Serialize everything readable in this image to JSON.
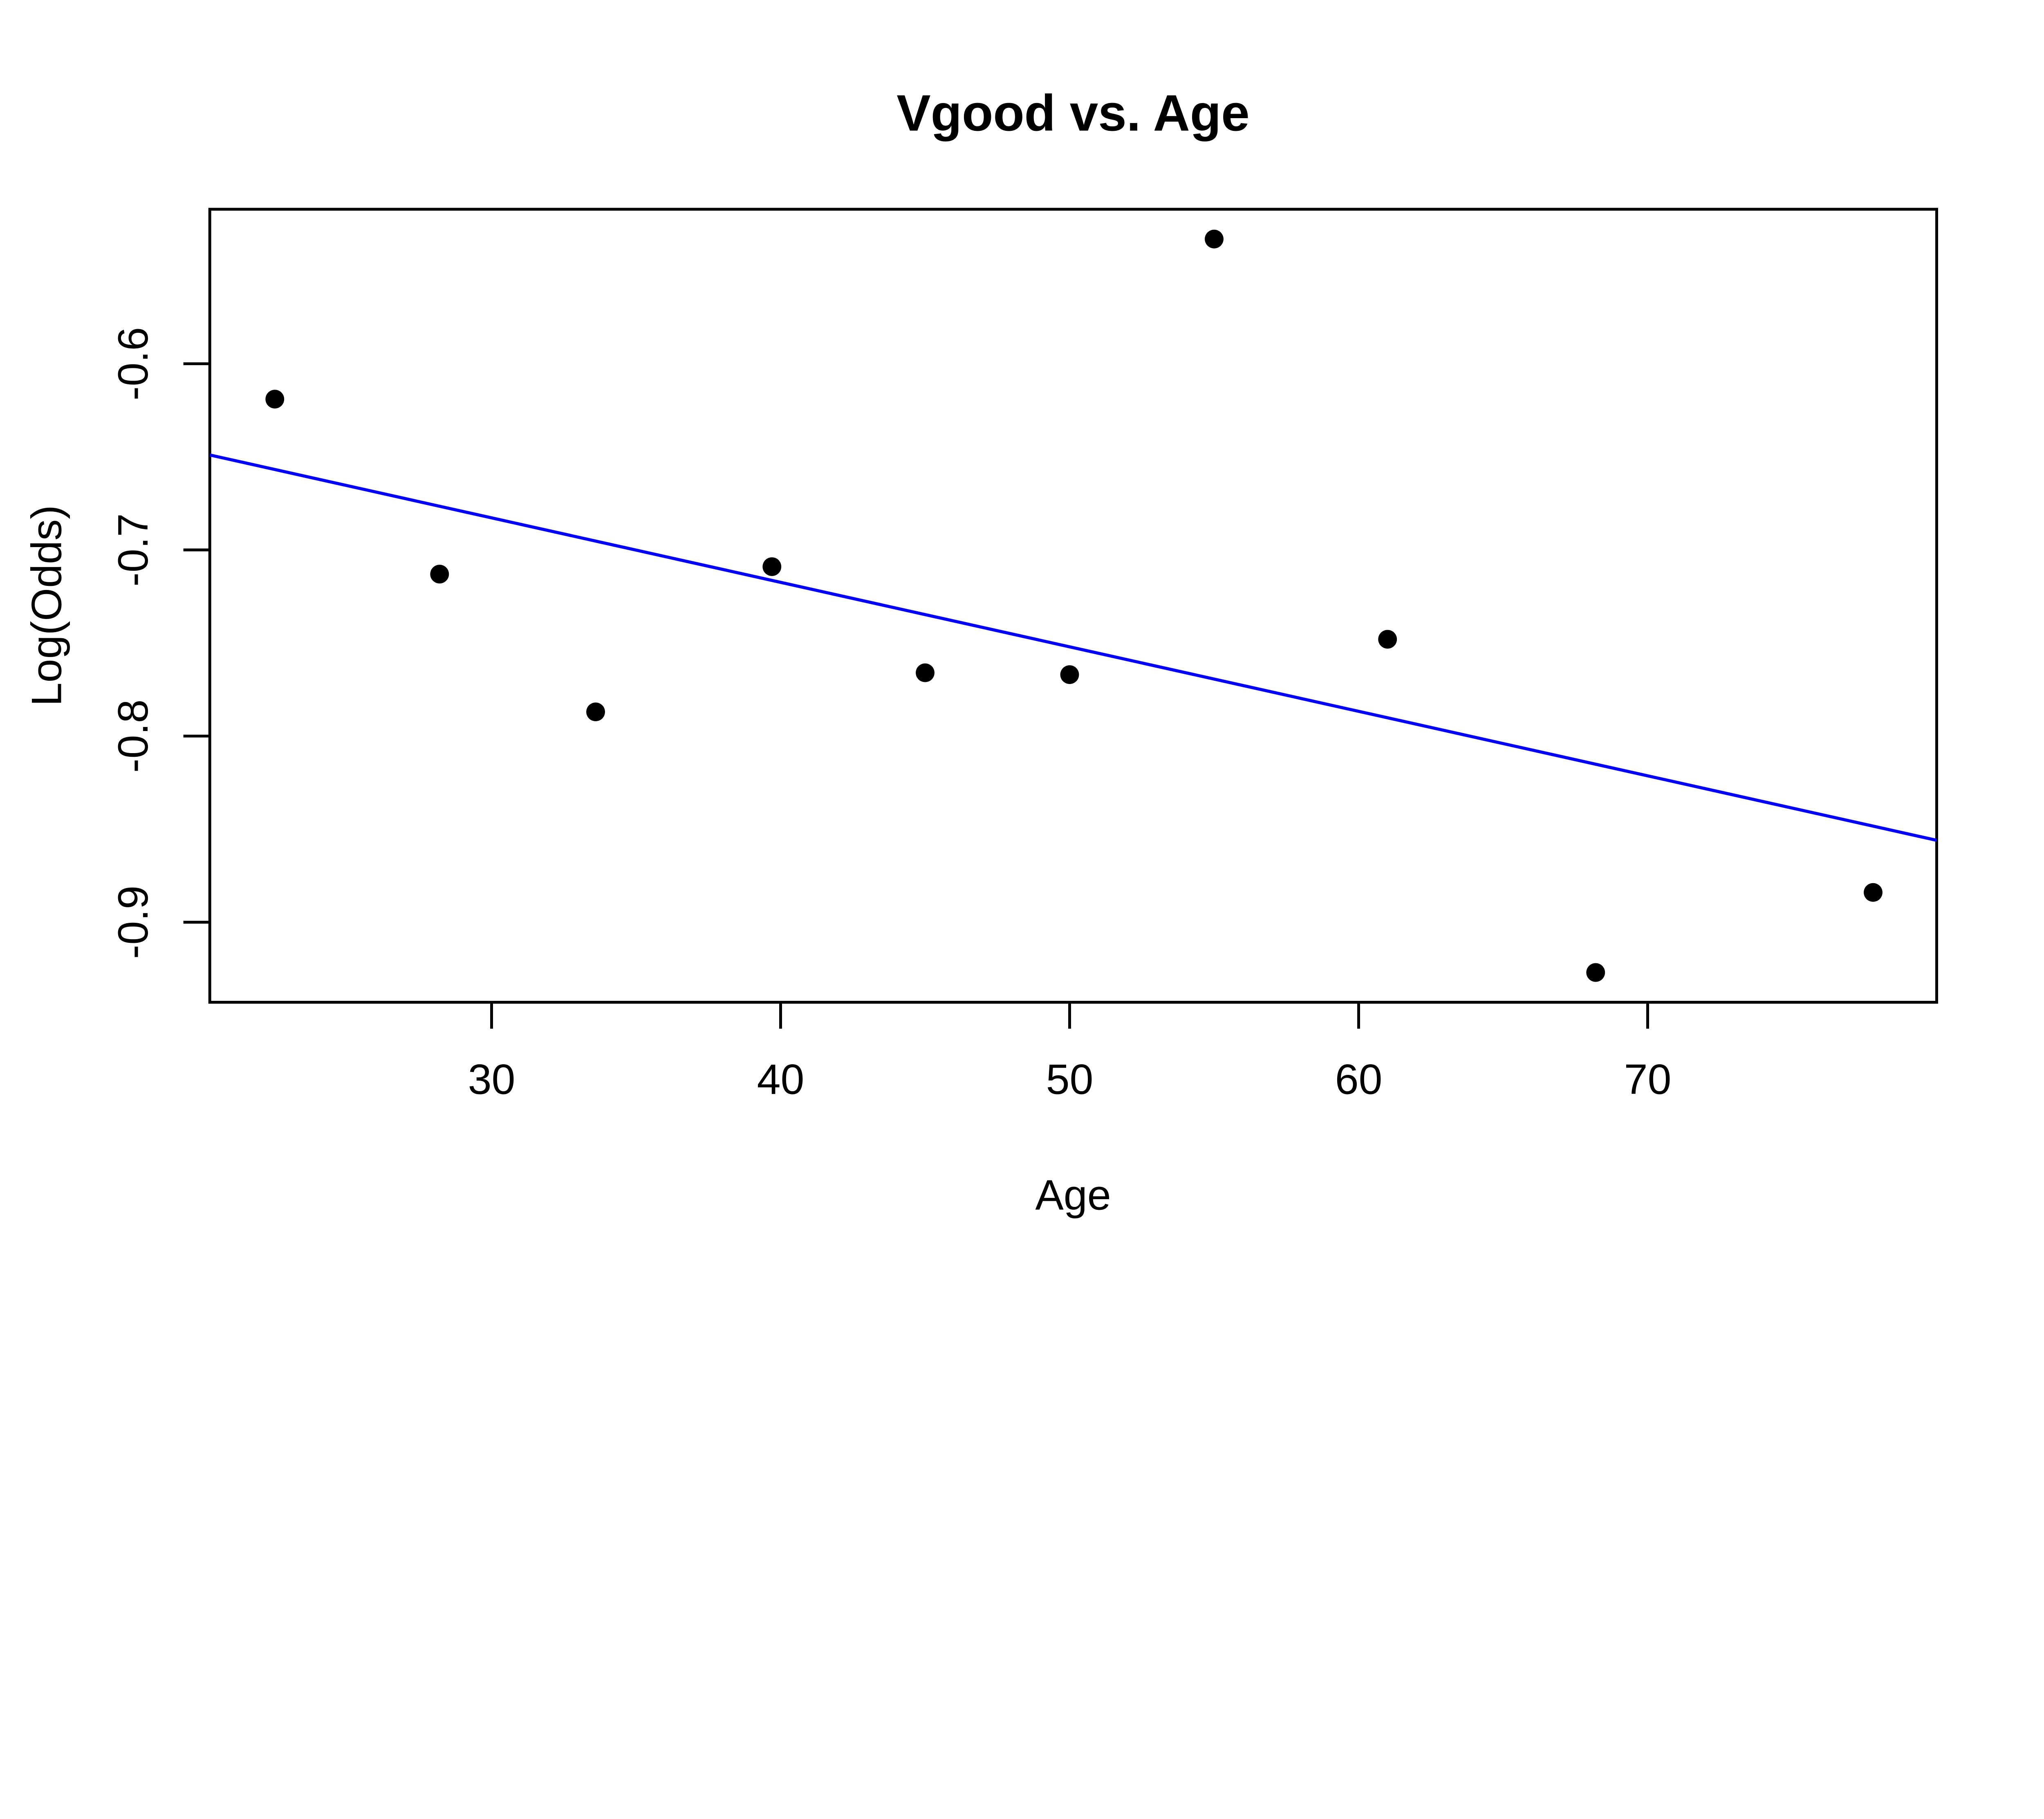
{
  "title": "Vgood vs. Age",
  "colors": {
    "background": "#FFFFFF",
    "foreground": "#000000",
    "point_color": "#000000",
    "regression_line_color": "#0000FF"
  },
  "chart_data": {
    "type": "scatter",
    "title": "Vgood vs. Age",
    "xlabel": "Age",
    "ylabel": "Log(Odds)",
    "x_ticks": [
      30,
      40,
      50,
      60,
      70
    ],
    "y_ticks": [
      -0.6,
      -0.7,
      -0.8,
      -0.9
    ],
    "xlim": [
      20.25,
      80.0
    ],
    "ylim": [
      -0.943,
      -0.517
    ],
    "grid": false,
    "legend_position": null,
    "marker": "filled-circle",
    "points": [
      {
        "x": 22.5,
        "y": -0.619
      },
      {
        "x": 28.2,
        "y": -0.713
      },
      {
        "x": 33.6,
        "y": -0.787
      },
      {
        "x": 39.7,
        "y": -0.709
      },
      {
        "x": 45.0,
        "y": -0.766
      },
      {
        "x": 50.0,
        "y": -0.767
      },
      {
        "x": 55.0,
        "y": -0.533
      },
      {
        "x": 61.0,
        "y": -0.748
      },
      {
        "x": 68.2,
        "y": -0.927
      },
      {
        "x": 77.8,
        "y": -0.884
      }
    ],
    "regression_line": {
      "slope": -0.0035,
      "intercept": -0.578,
      "x1": 20.25,
      "y1": -0.649,
      "x2": 80.0,
      "y2": -0.856,
      "color": "#0000FF"
    }
  }
}
